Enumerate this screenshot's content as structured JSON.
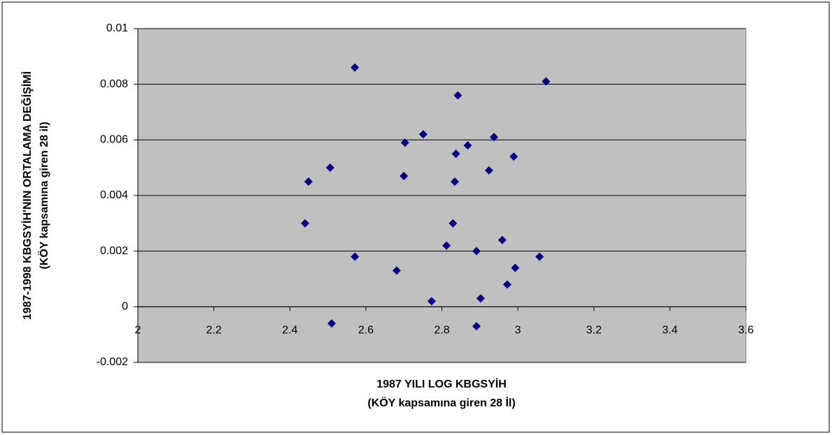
{
  "chart_data": {
    "type": "scatter",
    "xlabel": [
      "1987 YILI LOG KBGSYİH",
      "(KÖY kapsamına giren 28 İl)"
    ],
    "ylabel": [
      "1987-1998 KBGSYİH'NIN ORTALAMA DEĞİŞİMİ",
      "(KÖY kapsamına giren 28 il)"
    ],
    "x": [
      2.571,
      3.074,
      2.842,
      2.751,
      2.937,
      2.703,
      2.868,
      2.837,
      2.989,
      2.506,
      2.924,
      2.7,
      2.449,
      2.834,
      2.44,
      2.829,
      2.812,
      2.959,
      2.891,
      2.571,
      3.057,
      2.993,
      2.681,
      2.972,
      2.902,
      2.773,
      2.51,
      2.891
    ],
    "values": [
      0.0086,
      0.0081,
      0.0076,
      0.0062,
      0.0061,
      0.0059,
      0.0058,
      0.0055,
      0.0054,
      0.005,
      0.0049,
      0.0047,
      0.0045,
      0.0045,
      0.003,
      0.003,
      0.0022,
      0.0024,
      0.002,
      0.0018,
      0.0018,
      0.0014,
      0.0013,
      0.0008,
      0.0003,
      0.0002,
      -0.0006,
      -0.0007
    ],
    "color": "#000080",
    "xlim": [
      2,
      3.6
    ],
    "xticks": [
      2,
      2.2,
      2.4,
      2.6,
      2.8,
      3,
      3.2,
      3.4,
      3.6
    ],
    "ylim": [
      -0.002,
      0.01
    ],
    "yticks": [
      -0.002,
      0,
      0.002,
      0.004,
      0.006,
      0.008,
      0.01
    ],
    "grid": true
  }
}
